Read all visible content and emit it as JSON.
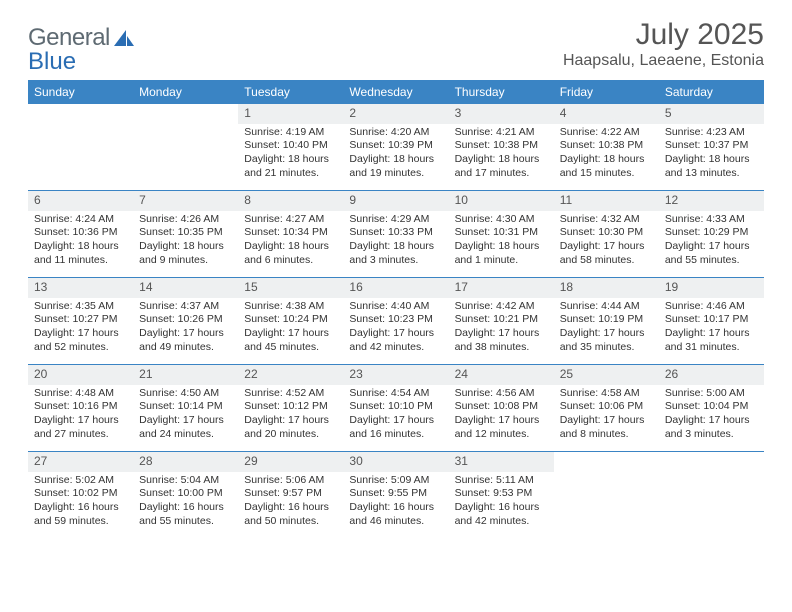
{
  "logo": {
    "word1": "General",
    "word2": "Blue",
    "icon_name": "sail-icon",
    "word1_color": "#7a838a",
    "word2_color": "#2a6db3",
    "icon_color": "#2a6db3"
  },
  "header": {
    "title": "July 2025",
    "location": "Haapsalu, Laeaene, Estonia"
  },
  "colors": {
    "header_bg": "#3a84c4",
    "header_text": "#ffffff",
    "daynum_bg": "#eef0f1",
    "daynum_text": "#555555",
    "body_text": "#333333",
    "divider": "#3a84c4"
  },
  "weekdays": [
    "Sunday",
    "Monday",
    "Tuesday",
    "Wednesday",
    "Thursday",
    "Friday",
    "Saturday"
  ],
  "weeks": [
    [
      {
        "num": "",
        "sunrise": "",
        "sunset": "",
        "daylight": ""
      },
      {
        "num": "",
        "sunrise": "",
        "sunset": "",
        "daylight": ""
      },
      {
        "num": "1",
        "sunrise": "Sunrise: 4:19 AM",
        "sunset": "Sunset: 10:40 PM",
        "daylight": "Daylight: 18 hours and 21 minutes."
      },
      {
        "num": "2",
        "sunrise": "Sunrise: 4:20 AM",
        "sunset": "Sunset: 10:39 PM",
        "daylight": "Daylight: 18 hours and 19 minutes."
      },
      {
        "num": "3",
        "sunrise": "Sunrise: 4:21 AM",
        "sunset": "Sunset: 10:38 PM",
        "daylight": "Daylight: 18 hours and 17 minutes."
      },
      {
        "num": "4",
        "sunrise": "Sunrise: 4:22 AM",
        "sunset": "Sunset: 10:38 PM",
        "daylight": "Daylight: 18 hours and 15 minutes."
      },
      {
        "num": "5",
        "sunrise": "Sunrise: 4:23 AM",
        "sunset": "Sunset: 10:37 PM",
        "daylight": "Daylight: 18 hours and 13 minutes."
      }
    ],
    [
      {
        "num": "6",
        "sunrise": "Sunrise: 4:24 AM",
        "sunset": "Sunset: 10:36 PM",
        "daylight": "Daylight: 18 hours and 11 minutes."
      },
      {
        "num": "7",
        "sunrise": "Sunrise: 4:26 AM",
        "sunset": "Sunset: 10:35 PM",
        "daylight": "Daylight: 18 hours and 9 minutes."
      },
      {
        "num": "8",
        "sunrise": "Sunrise: 4:27 AM",
        "sunset": "Sunset: 10:34 PM",
        "daylight": "Daylight: 18 hours and 6 minutes."
      },
      {
        "num": "9",
        "sunrise": "Sunrise: 4:29 AM",
        "sunset": "Sunset: 10:33 PM",
        "daylight": "Daylight: 18 hours and 3 minutes."
      },
      {
        "num": "10",
        "sunrise": "Sunrise: 4:30 AM",
        "sunset": "Sunset: 10:31 PM",
        "daylight": "Daylight: 18 hours and 1 minute."
      },
      {
        "num": "11",
        "sunrise": "Sunrise: 4:32 AM",
        "sunset": "Sunset: 10:30 PM",
        "daylight": "Daylight: 17 hours and 58 minutes."
      },
      {
        "num": "12",
        "sunrise": "Sunrise: 4:33 AM",
        "sunset": "Sunset: 10:29 PM",
        "daylight": "Daylight: 17 hours and 55 minutes."
      }
    ],
    [
      {
        "num": "13",
        "sunrise": "Sunrise: 4:35 AM",
        "sunset": "Sunset: 10:27 PM",
        "daylight": "Daylight: 17 hours and 52 minutes."
      },
      {
        "num": "14",
        "sunrise": "Sunrise: 4:37 AM",
        "sunset": "Sunset: 10:26 PM",
        "daylight": "Daylight: 17 hours and 49 minutes."
      },
      {
        "num": "15",
        "sunrise": "Sunrise: 4:38 AM",
        "sunset": "Sunset: 10:24 PM",
        "daylight": "Daylight: 17 hours and 45 minutes."
      },
      {
        "num": "16",
        "sunrise": "Sunrise: 4:40 AM",
        "sunset": "Sunset: 10:23 PM",
        "daylight": "Daylight: 17 hours and 42 minutes."
      },
      {
        "num": "17",
        "sunrise": "Sunrise: 4:42 AM",
        "sunset": "Sunset: 10:21 PM",
        "daylight": "Daylight: 17 hours and 38 minutes."
      },
      {
        "num": "18",
        "sunrise": "Sunrise: 4:44 AM",
        "sunset": "Sunset: 10:19 PM",
        "daylight": "Daylight: 17 hours and 35 minutes."
      },
      {
        "num": "19",
        "sunrise": "Sunrise: 4:46 AM",
        "sunset": "Sunset: 10:17 PM",
        "daylight": "Daylight: 17 hours and 31 minutes."
      }
    ],
    [
      {
        "num": "20",
        "sunrise": "Sunrise: 4:48 AM",
        "sunset": "Sunset: 10:16 PM",
        "daylight": "Daylight: 17 hours and 27 minutes."
      },
      {
        "num": "21",
        "sunrise": "Sunrise: 4:50 AM",
        "sunset": "Sunset: 10:14 PM",
        "daylight": "Daylight: 17 hours and 24 minutes."
      },
      {
        "num": "22",
        "sunrise": "Sunrise: 4:52 AM",
        "sunset": "Sunset: 10:12 PM",
        "daylight": "Daylight: 17 hours and 20 minutes."
      },
      {
        "num": "23",
        "sunrise": "Sunrise: 4:54 AM",
        "sunset": "Sunset: 10:10 PM",
        "daylight": "Daylight: 17 hours and 16 minutes."
      },
      {
        "num": "24",
        "sunrise": "Sunrise: 4:56 AM",
        "sunset": "Sunset: 10:08 PM",
        "daylight": "Daylight: 17 hours and 12 minutes."
      },
      {
        "num": "25",
        "sunrise": "Sunrise: 4:58 AM",
        "sunset": "Sunset: 10:06 PM",
        "daylight": "Daylight: 17 hours and 8 minutes."
      },
      {
        "num": "26",
        "sunrise": "Sunrise: 5:00 AM",
        "sunset": "Sunset: 10:04 PM",
        "daylight": "Daylight: 17 hours and 3 minutes."
      }
    ],
    [
      {
        "num": "27",
        "sunrise": "Sunrise: 5:02 AM",
        "sunset": "Sunset: 10:02 PM",
        "daylight": "Daylight: 16 hours and 59 minutes."
      },
      {
        "num": "28",
        "sunrise": "Sunrise: 5:04 AM",
        "sunset": "Sunset: 10:00 PM",
        "daylight": "Daylight: 16 hours and 55 minutes."
      },
      {
        "num": "29",
        "sunrise": "Sunrise: 5:06 AM",
        "sunset": "Sunset: 9:57 PM",
        "daylight": "Daylight: 16 hours and 50 minutes."
      },
      {
        "num": "30",
        "sunrise": "Sunrise: 5:09 AM",
        "sunset": "Sunset: 9:55 PM",
        "daylight": "Daylight: 16 hours and 46 minutes."
      },
      {
        "num": "31",
        "sunrise": "Sunrise: 5:11 AM",
        "sunset": "Sunset: 9:53 PM",
        "daylight": "Daylight: 16 hours and 42 minutes."
      },
      {
        "num": "",
        "sunrise": "",
        "sunset": "",
        "daylight": ""
      },
      {
        "num": "",
        "sunrise": "",
        "sunset": "",
        "daylight": ""
      }
    ]
  ]
}
